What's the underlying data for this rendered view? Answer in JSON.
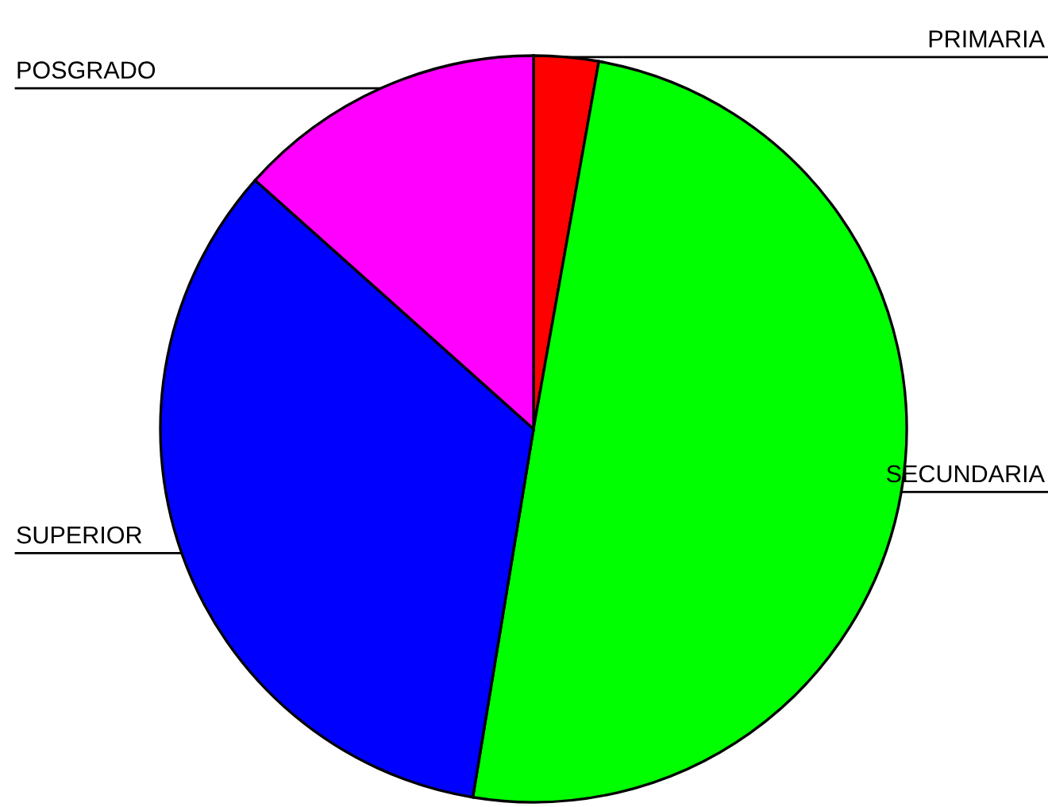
{
  "chart_data": {
    "type": "pie",
    "categories": [
      "PRIMARIA",
      "SECUNDARIA",
      "SUPERIOR",
      "POSGRADO"
    ],
    "values": [
      2.8,
      49.8,
      34.0,
      13.4
    ],
    "colors": [
      "#ff0000",
      "#00ff00",
      "#0000ff",
      "#ff00ff"
    ],
    "legend": false
  }
}
